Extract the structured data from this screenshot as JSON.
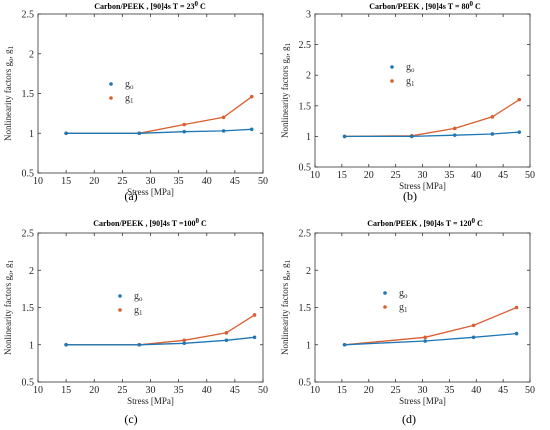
{
  "chart_data": [
    {
      "type": "line",
      "title": "Carbon/PEEK , [90]4s T = 23",
      "title_sup": "0",
      "title_unit": " C",
      "caption": "(a)",
      "xlabel": "Stress [MPa]",
      "ylabel": "Nonlinearity factors g",
      "ylabel_sub": [
        "o",
        "1"
      ],
      "xlim": [
        10,
        50
      ],
      "ylim": [
        0.5,
        2.5
      ],
      "xticks": [
        10,
        15,
        20,
        25,
        30,
        35,
        40,
        45,
        50
      ],
      "yticks": [
        0.5,
        1,
        1.5,
        2,
        2.5
      ],
      "grid": false,
      "legend_position": "upper-left",
      "series": [
        {
          "name": "g",
          "sub": "o",
          "color": "#1f77b4",
          "x": [
            15,
            28,
            36,
            43,
            48
          ],
          "y": [
            1.0,
            1.0,
            1.02,
            1.03,
            1.05
          ]
        },
        {
          "name": "g",
          "sub": "1",
          "color": "#d95f30",
          "x": [
            15,
            28,
            36,
            43,
            48
          ],
          "y": [
            1.0,
            1.0,
            1.11,
            1.2,
            1.46
          ]
        }
      ]
    },
    {
      "type": "line",
      "title": "Carbon/PEEK , [90]4s T = 80",
      "title_sup": "0",
      "title_unit": " C",
      "caption": "(b)",
      "xlabel": "Stress [MPa]",
      "ylabel": "Nonlinearity factors g",
      "ylabel_sub": [
        "o",
        "1"
      ],
      "xlim": [
        10,
        50
      ],
      "ylim": [
        0.5,
        3
      ],
      "xticks": [
        10,
        15,
        20,
        25,
        30,
        35,
        40,
        45,
        50
      ],
      "yticks": [
        0.5,
        1,
        1.5,
        2,
        2.5,
        3
      ],
      "grid": false,
      "legend_position": "upper-center",
      "series": [
        {
          "name": "g",
          "sub": "o",
          "color": "#1f77b4",
          "x": [
            15.5,
            28,
            36,
            43,
            48
          ],
          "y": [
            1.0,
            1.0,
            1.02,
            1.04,
            1.07
          ]
        },
        {
          "name": "g",
          "sub": "1",
          "color": "#d95f30",
          "x": [
            15.5,
            28,
            36,
            43,
            48
          ],
          "y": [
            1.0,
            1.01,
            1.13,
            1.32,
            1.6
          ]
        }
      ]
    },
    {
      "type": "line",
      "title": "Carbon/PEEK , [90]4s T =100",
      "title_sup": "0",
      "title_unit": " C",
      "caption": "(c)",
      "xlabel": "Stress [MPa]",
      "ylabel": "Nonlinearity factors g",
      "ylabel_sub": [
        "o",
        "1"
      ],
      "xlim": [
        10,
        50
      ],
      "ylim": [
        0.5,
        2.5
      ],
      "xticks": [
        10,
        15,
        20,
        25,
        30,
        35,
        40,
        45,
        50
      ],
      "yticks": [
        0.5,
        1,
        1.5,
        2,
        2.5
      ],
      "grid": false,
      "legend_position": "upper-center",
      "series": [
        {
          "name": "g",
          "sub": "o",
          "color": "#1f77b4",
          "x": [
            15,
            28,
            36,
            43.5,
            48.5
          ],
          "y": [
            1.0,
            1.0,
            1.02,
            1.06,
            1.1
          ]
        },
        {
          "name": "g",
          "sub": "1",
          "color": "#d95f30",
          "x": [
            15,
            28,
            36,
            43.5,
            48.5
          ],
          "y": [
            1.0,
            1.0,
            1.06,
            1.16,
            1.4
          ]
        }
      ]
    },
    {
      "type": "line",
      "title": "Carbon/PEEK , [90]4s T = 120",
      "title_sup": "0",
      "title_unit": " C",
      "caption": "(d)",
      "xlabel": "Stress [MPa]",
      "ylabel": "Nonlinearity factors g",
      "ylabel_sub": [
        "o",
        "1"
      ],
      "xlim": [
        10,
        50
      ],
      "ylim": [
        0.5,
        2.5
      ],
      "xticks": [
        10,
        15,
        20,
        25,
        30,
        35,
        40,
        45,
        50
      ],
      "yticks": [
        0.5,
        1,
        1.5,
        2,
        2.5
      ],
      "grid": false,
      "legend_position": "upper-center",
      "series": [
        {
          "name": "g",
          "sub": "o",
          "color": "#1f77b4",
          "x": [
            15.5,
            30.5,
            39.5,
            47.5
          ],
          "y": [
            1.0,
            1.05,
            1.1,
            1.15
          ]
        },
        {
          "name": "g",
          "sub": "1",
          "color": "#d95f30",
          "x": [
            15.5,
            30.5,
            39.5,
            47.5
          ],
          "y": [
            1.0,
            1.1,
            1.26,
            1.5
          ]
        }
      ]
    }
  ]
}
